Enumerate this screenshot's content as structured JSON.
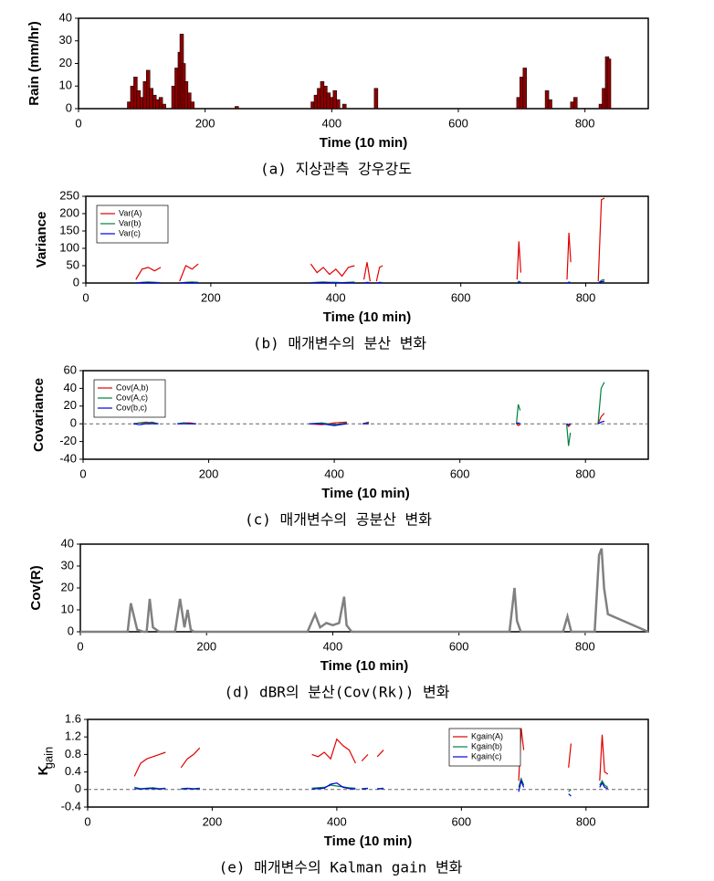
{
  "chart_data": [
    {
      "type": "bar",
      "ylabel": "Rain (mm/hr)",
      "xlabel": "Time (10 min)",
      "caption": "(a) 지상관측 강우강도",
      "color": "#8b0000",
      "x": [
        80,
        85,
        90,
        95,
        100,
        105,
        110,
        115,
        120,
        125,
        130,
        135,
        150,
        155,
        160,
        163,
        166,
        170,
        175,
        180,
        250,
        370,
        375,
        380,
        385,
        390,
        395,
        400,
        405,
        410,
        420,
        470,
        695,
        700,
        705,
        740,
        745,
        780,
        785,
        825,
        830,
        835,
        838
      ],
      "values": [
        3,
        10,
        14,
        8,
        5,
        12,
        17,
        9,
        6,
        4,
        5,
        2,
        10,
        18,
        25,
        33,
        20,
        12,
        7,
        3,
        1,
        3,
        6,
        9,
        12,
        10,
        7,
        5,
        8,
        4,
        2,
        9,
        5,
        14,
        18,
        8,
        4,
        3,
        5,
        2,
        9,
        23,
        22
      ],
      "xlim": [
        0,
        900
      ],
      "xticks": [
        0,
        200,
        400,
        600,
        800
      ],
      "ylim": [
        0,
        40
      ],
      "yticks": [
        0,
        10,
        20,
        30,
        40
      ]
    },
    {
      "type": "line",
      "ylabel": "Variance",
      "xlabel": "Time (10 min)",
      "caption": "(b) 매개변수의 분산 변화",
      "legend": "upper-left",
      "x": [
        80,
        90,
        100,
        110,
        120,
        130,
        150,
        160,
        170,
        180,
        190,
        360,
        370,
        380,
        390,
        400,
        410,
        420,
        430,
        440,
        445,
        450,
        455,
        460,
        465,
        470,
        475,
        480,
        690,
        693,
        696,
        700,
        770,
        773,
        776,
        780,
        820,
        825,
        830,
        835
      ],
      "series": [
        {
          "name": "Var(A)",
          "color": "#e00000",
          "values": [
            10,
            40,
            45,
            35,
            45,
            null,
            5,
            50,
            40,
            55,
            null,
            55,
            30,
            45,
            25,
            40,
            20,
            45,
            50,
            null,
            10,
            60,
            5,
            null,
            5,
            45,
            50,
            null,
            10,
            120,
            30,
            null,
            10,
            145,
            60,
            null,
            5,
            240,
            245,
            null
          ]
        },
        {
          "name": "Var(b)",
          "color": "#008040",
          "values": [
            0,
            2,
            3,
            2,
            1,
            null,
            0,
            2,
            3,
            2,
            null,
            1,
            2,
            3,
            2,
            2,
            1,
            2,
            3,
            null,
            0,
            2,
            1,
            null,
            0,
            2,
            1,
            null,
            0,
            5,
            2,
            null,
            0,
            3,
            1,
            null,
            0,
            8,
            10,
            null
          ]
        },
        {
          "name": "Var(c)",
          "color": "#0000e0",
          "values": [
            0,
            1,
            1,
            1,
            0,
            null,
            0,
            1,
            1,
            0,
            null,
            0,
            1,
            1,
            1,
            0,
            1,
            1,
            0,
            null,
            0,
            1,
            0,
            null,
            0,
            1,
            0,
            null,
            0,
            2,
            1,
            null,
            0,
            1,
            0,
            null,
            0,
            4,
            5,
            null
          ]
        }
      ],
      "xlim": [
        0,
        900
      ],
      "xticks": [
        0,
        200,
        400,
        600,
        800
      ],
      "ylim": [
        0,
        250
      ],
      "yticks": [
        0,
        50,
        100,
        150,
        200,
        250
      ]
    },
    {
      "type": "line",
      "ylabel": "Covariance",
      "xlabel": "Time (10 min)",
      "caption": "(c) 매개변수의 공분산 변화",
      "legend": "upper-left",
      "zero_line": true,
      "x": [
        80,
        90,
        100,
        110,
        120,
        130,
        150,
        160,
        170,
        180,
        190,
        360,
        380,
        400,
        420,
        430,
        445,
        455,
        460,
        690,
        693,
        696,
        700,
        770,
        773,
        776,
        780,
        820,
        825,
        830,
        835
      ],
      "series": [
        {
          "name": "Cov(A,b)",
          "color": "#e00000",
          "values": [
            0,
            1,
            2,
            1,
            0,
            null,
            0,
            1,
            1,
            0,
            null,
            0,
            -1,
            1,
            2,
            null,
            0,
            2,
            null,
            0,
            -2,
            -1,
            null,
            0,
            -3,
            -1,
            null,
            0,
            8,
            12,
            null
          ]
        },
        {
          "name": "Cov(A,c)",
          "color": "#008040",
          "values": [
            0,
            1,
            1,
            2,
            0,
            null,
            0,
            1,
            0,
            0,
            null,
            0,
            1,
            -1,
            1,
            null,
            0,
            1,
            null,
            0,
            22,
            15,
            null,
            0,
            -25,
            -10,
            null,
            0,
            40,
            47,
            null
          ]
        },
        {
          "name": "Cov(b,c)",
          "color": "#0000e0",
          "values": [
            0,
            -1,
            0,
            0,
            0,
            null,
            0,
            0,
            0,
            0,
            null,
            0,
            0,
            -2,
            0,
            null,
            0,
            0,
            null,
            0,
            1,
            0,
            null,
            0,
            -1,
            0,
            null,
            0,
            2,
            3,
            null
          ]
        }
      ],
      "xlim": [
        0,
        900
      ],
      "xticks": [
        0,
        200,
        400,
        600,
        800
      ],
      "ylim": [
        -40,
        60
      ],
      "yticks": [
        -40,
        -20,
        0,
        20,
        40,
        60
      ]
    },
    {
      "type": "line",
      "ylabel": "Cov(R)",
      "xlabel": "Time (10 min)",
      "caption": "(d) dBR의 분산(Cov(Rk)) 변화",
      "x": [
        0,
        75,
        80,
        90,
        100,
        105,
        110,
        115,
        125,
        150,
        158,
        165,
        170,
        175,
        180,
        185,
        360,
        372,
        380,
        390,
        400,
        410,
        418,
        422,
        430,
        680,
        688,
        692,
        698,
        765,
        772,
        778,
        815,
        822,
        826,
        830,
        836,
        900
      ],
      "series": [
        {
          "color": "#808080",
          "values": [
            0,
            0,
            13,
            1,
            0,
            0,
            15,
            2,
            0,
            0,
            15,
            2,
            10,
            1,
            0,
            0,
            0,
            8,
            2,
            4,
            3,
            4,
            16,
            3,
            0,
            0,
            20,
            5,
            0,
            0,
            7,
            0,
            0,
            35,
            38,
            20,
            8,
            0
          ]
        }
      ],
      "xlim": [
        0,
        900
      ],
      "xticks": [
        0,
        200,
        400,
        600,
        800
      ],
      "ylim": [
        0,
        40
      ],
      "yticks": [
        0,
        10,
        20,
        30,
        40
      ]
    },
    {
      "type": "line",
      "ylabel": "K",
      "ylabel_subscript": "gain",
      "xlabel": "Time (10 min)",
      "caption": "(e) 매개변수의 Kalman gain 변화",
      "legend": "upper-right",
      "zero_line": true,
      "x": [
        75,
        85,
        95,
        105,
        115,
        125,
        130,
        150,
        160,
        170,
        180,
        185,
        360,
        370,
        380,
        390,
        400,
        410,
        420,
        430,
        435,
        440,
        450,
        455,
        465,
        475,
        480,
        692,
        696,
        700,
        705,
        772,
        776,
        780,
        822,
        826,
        830,
        835,
        840
      ],
      "series": [
        {
          "name": "Kgain(A)",
          "color": "#e00000",
          "values": [
            0.3,
            0.6,
            0.7,
            0.75,
            0.8,
            0.85,
            null,
            0.5,
            0.7,
            0.8,
            0.95,
            null,
            0.8,
            0.75,
            0.85,
            0.7,
            1.15,
            1.0,
            0.9,
            0.6,
            null,
            0.65,
            0.8,
            null,
            0.75,
            0.9,
            null,
            0.2,
            1.4,
            0.9,
            null,
            0.5,
            1.05,
            null,
            0.2,
            1.25,
            0.4,
            0.35,
            null
          ]
        },
        {
          "name": "Kgain(b)",
          "color": "#008040",
          "values": [
            0.05,
            0.02,
            0.03,
            0.04,
            0.02,
            0.03,
            null,
            0.02,
            0.03,
            0.02,
            0.03,
            null,
            0.03,
            0.04,
            0.05,
            0.1,
            0.08,
            0.06,
            0.04,
            0.03,
            null,
            0.02,
            0.03,
            null,
            0.02,
            0.03,
            null,
            0.05,
            0.25,
            0.1,
            null,
            -0.05,
            0,
            null,
            0.1,
            0.2,
            0.1,
            0.05,
            null
          ]
        },
        {
          "name": "Kgain(c)",
          "color": "#0000e0",
          "values": [
            0.02,
            0.01,
            0.02,
            0.02,
            0.01,
            0.02,
            null,
            0.01,
            0.02,
            0.01,
            0.02,
            null,
            0.01,
            0.02,
            0.03,
            0.12,
            0.15,
            0.05,
            0.02,
            0.01,
            null,
            0.01,
            0.02,
            null,
            0.01,
            0.02,
            null,
            -0.05,
            0.2,
            0.05,
            null,
            -0.1,
            -0.15,
            null,
            0.05,
            0.15,
            0.05,
            0.02,
            null
          ]
        }
      ],
      "xlim": [
        0,
        900
      ],
      "xticks": [
        0,
        200,
        400,
        600,
        800
      ],
      "ylim": [
        -0.4,
        1.6
      ],
      "yticks": [
        -0.4,
        0,
        0.4,
        0.8,
        1.2,
        1.6
      ]
    }
  ]
}
